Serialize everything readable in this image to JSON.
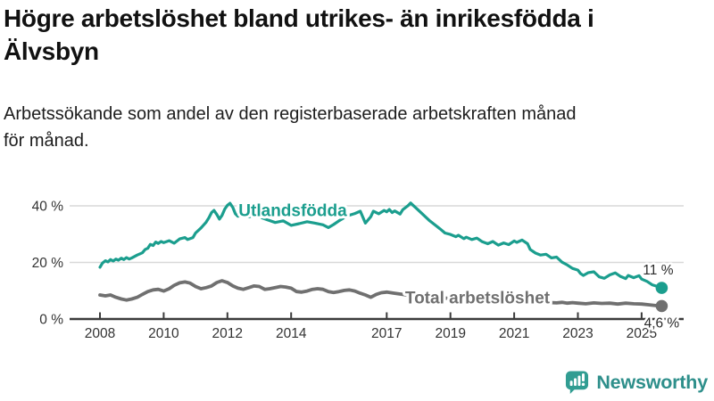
{
  "header": {
    "title_line1": "Högre arbetslöshet bland utrikes- än inrikesfödda i",
    "title_line2": "Älvsbyn",
    "subtitle_line1": "Arbetssökande som andel av den registerbaserade arbetskraften månad",
    "subtitle_line2": "för månad."
  },
  "chart_data": {
    "type": "line",
    "title": "Högre arbetslöshet bland utrikes- än inrikesfödda i Älvsbyn",
    "subtitle": "Arbetssökande som andel av den registerbaserade arbetskraften månad för månad.",
    "unit": "%",
    "x_axis": {
      "min": 2007.1,
      "max": 2026.3,
      "ticks": [
        2008,
        2010,
        2012,
        2014,
        2017,
        2019,
        2021,
        2023,
        2025
      ],
      "labels": [
        "2008",
        "2010",
        "2012",
        "2014",
        "2017",
        "2019",
        "2021",
        "2023",
        "2025"
      ]
    },
    "y_axis": {
      "min": 0,
      "max": 44,
      "grid": true,
      "ticks": [
        0,
        20,
        40
      ],
      "labels": [
        "0 %",
        "20 %",
        "40 %"
      ]
    },
    "series": [
      {
        "id": "utlandsfodda",
        "name": "Utlandsfödda",
        "color": "#1b9e8e",
        "line_width": 3.2,
        "end_label": "11 %",
        "end_value": 11,
        "label_anchor": [
          2014.05,
          38.2
        ],
        "end_label_offset": [
          -4,
          -15
        ],
        "points": [
          [
            2008.0,
            18.3
          ],
          [
            2008.08,
            19.8
          ],
          [
            2008.17,
            20.6
          ],
          [
            2008.25,
            20.2
          ],
          [
            2008.33,
            21.0
          ],
          [
            2008.42,
            20.5
          ],
          [
            2008.5,
            21.2
          ],
          [
            2008.58,
            20.8
          ],
          [
            2008.67,
            21.5
          ],
          [
            2008.75,
            21.0
          ],
          [
            2008.83,
            21.7
          ],
          [
            2008.92,
            21.2
          ],
          [
            2009.0,
            21.6
          ],
          [
            2009.17,
            22.6
          ],
          [
            2009.33,
            23.4
          ],
          [
            2009.42,
            24.6
          ],
          [
            2009.5,
            25.0
          ],
          [
            2009.58,
            26.4
          ],
          [
            2009.67,
            26.0
          ],
          [
            2009.75,
            27.2
          ],
          [
            2009.83,
            26.7
          ],
          [
            2009.92,
            27.4
          ],
          [
            2010.0,
            27.0
          ],
          [
            2010.17,
            27.7
          ],
          [
            2010.33,
            26.8
          ],
          [
            2010.42,
            27.6
          ],
          [
            2010.5,
            28.3
          ],
          [
            2010.67,
            28.8
          ],
          [
            2010.75,
            28.1
          ],
          [
            2010.92,
            28.8
          ],
          [
            2011.0,
            30.4
          ],
          [
            2011.17,
            32.2
          ],
          [
            2011.33,
            34.2
          ],
          [
            2011.42,
            35.8
          ],
          [
            2011.5,
            37.6
          ],
          [
            2011.58,
            38.4
          ],
          [
            2011.67,
            36.9
          ],
          [
            2011.75,
            35.3
          ],
          [
            2011.83,
            36.6
          ],
          [
            2011.92,
            38.9
          ],
          [
            2012.0,
            40.2
          ],
          [
            2012.08,
            40.9
          ],
          [
            2012.17,
            39.4
          ],
          [
            2012.25,
            37.2
          ],
          [
            2012.33,
            36.3
          ],
          [
            2012.5,
            36.8
          ],
          [
            2012.67,
            36.1
          ],
          [
            2012.83,
            36.6
          ],
          [
            2013.0,
            36.1
          ],
          [
            2013.25,
            35.1
          ],
          [
            2013.5,
            34.1
          ],
          [
            2013.75,
            34.7
          ],
          [
            2014.0,
            33.1
          ],
          [
            2014.25,
            33.7
          ],
          [
            2014.5,
            34.4
          ],
          [
            2014.75,
            33.9
          ],
          [
            2015.0,
            33.3
          ],
          [
            2015.17,
            32.3
          ],
          [
            2015.33,
            33.4
          ],
          [
            2015.5,
            34.7
          ],
          [
            2015.75,
            36.4
          ],
          [
            2016.0,
            37.3
          ],
          [
            2016.17,
            38.1
          ],
          [
            2016.33,
            33.9
          ],
          [
            2016.5,
            36.2
          ],
          [
            2016.58,
            38.1
          ],
          [
            2016.75,
            37.2
          ],
          [
            2016.92,
            38.4
          ],
          [
            2017.0,
            37.9
          ],
          [
            2017.08,
            38.7
          ],
          [
            2017.17,
            37.6
          ],
          [
            2017.25,
            38.2
          ],
          [
            2017.42,
            37.1
          ],
          [
            2017.5,
            38.6
          ],
          [
            2017.67,
            40.1
          ],
          [
            2017.75,
            41.0
          ],
          [
            2017.83,
            40.2
          ],
          [
            2018.0,
            38.4
          ],
          [
            2018.17,
            36.6
          ],
          [
            2018.33,
            34.9
          ],
          [
            2018.5,
            33.4
          ],
          [
            2018.67,
            31.9
          ],
          [
            2018.83,
            30.4
          ],
          [
            2019.0,
            29.9
          ],
          [
            2019.17,
            29.1
          ],
          [
            2019.25,
            29.6
          ],
          [
            2019.42,
            28.4
          ],
          [
            2019.5,
            28.9
          ],
          [
            2019.67,
            28.1
          ],
          [
            2019.83,
            28.6
          ],
          [
            2020.0,
            27.3
          ],
          [
            2020.17,
            26.6
          ],
          [
            2020.33,
            27.4
          ],
          [
            2020.5,
            26.1
          ],
          [
            2020.67,
            26.9
          ],
          [
            2020.83,
            26.3
          ],
          [
            2021.0,
            27.6
          ],
          [
            2021.08,
            27.1
          ],
          [
            2021.25,
            27.9
          ],
          [
            2021.42,
            26.6
          ],
          [
            2021.5,
            24.6
          ],
          [
            2021.67,
            23.3
          ],
          [
            2021.83,
            22.6
          ],
          [
            2022.0,
            22.9
          ],
          [
            2022.17,
            21.6
          ],
          [
            2022.33,
            21.9
          ],
          [
            2022.5,
            20.1
          ],
          [
            2022.67,
            19.1
          ],
          [
            2022.83,
            17.9
          ],
          [
            2023.0,
            17.3
          ],
          [
            2023.08,
            16.1
          ],
          [
            2023.17,
            15.4
          ],
          [
            2023.33,
            16.4
          ],
          [
            2023.5,
            16.7
          ],
          [
            2023.67,
            14.9
          ],
          [
            2023.83,
            14.4
          ],
          [
            2024.0,
            15.6
          ],
          [
            2024.17,
            16.3
          ],
          [
            2024.33,
            15.1
          ],
          [
            2024.5,
            14.3
          ],
          [
            2024.58,
            15.4
          ],
          [
            2024.75,
            14.6
          ],
          [
            2024.92,
            15.3
          ],
          [
            2025.0,
            14.1
          ],
          [
            2025.17,
            13.3
          ],
          [
            2025.33,
            12.1
          ],
          [
            2025.5,
            11.5
          ],
          [
            2025.63,
            11.0
          ]
        ]
      },
      {
        "id": "total",
        "name": "Total arbetslöshet",
        "color": "#707070",
        "line_width": 3.8,
        "end_label": "4,6 %",
        "end_value": 4.6,
        "label_anchor": [
          2019.85,
          7.4
        ],
        "end_label_offset": [
          0,
          24
        ],
        "points": [
          [
            2008.0,
            8.5
          ],
          [
            2008.17,
            8.2
          ],
          [
            2008.33,
            8.5
          ],
          [
            2008.5,
            7.7
          ],
          [
            2008.67,
            7.1
          ],
          [
            2008.83,
            6.7
          ],
          [
            2009.0,
            7.1
          ],
          [
            2009.17,
            7.7
          ],
          [
            2009.33,
            8.7
          ],
          [
            2009.5,
            9.7
          ],
          [
            2009.67,
            10.3
          ],
          [
            2009.83,
            10.5
          ],
          [
            2010.0,
            9.9
          ],
          [
            2010.17,
            10.7
          ],
          [
            2010.33,
            11.9
          ],
          [
            2010.5,
            12.8
          ],
          [
            2010.67,
            13.1
          ],
          [
            2010.83,
            12.7
          ],
          [
            2011.0,
            11.5
          ],
          [
            2011.17,
            10.7
          ],
          [
            2011.33,
            11.1
          ],
          [
            2011.5,
            11.7
          ],
          [
            2011.67,
            12.9
          ],
          [
            2011.83,
            13.5
          ],
          [
            2012.0,
            12.9
          ],
          [
            2012.17,
            11.7
          ],
          [
            2012.33,
            10.9
          ],
          [
            2012.5,
            10.5
          ],
          [
            2012.67,
            11.1
          ],
          [
            2012.83,
            11.7
          ],
          [
            2013.0,
            11.5
          ],
          [
            2013.17,
            10.5
          ],
          [
            2013.33,
            10.7
          ],
          [
            2013.5,
            11.1
          ],
          [
            2013.67,
            11.5
          ],
          [
            2013.83,
            11.3
          ],
          [
            2014.0,
            10.9
          ],
          [
            2014.17,
            9.7
          ],
          [
            2014.33,
            9.5
          ],
          [
            2014.5,
            9.9
          ],
          [
            2014.67,
            10.5
          ],
          [
            2014.83,
            10.7
          ],
          [
            2015.0,
            10.5
          ],
          [
            2015.17,
            9.7
          ],
          [
            2015.33,
            9.4
          ],
          [
            2015.5,
            9.7
          ],
          [
            2015.67,
            10.1
          ],
          [
            2015.83,
            10.3
          ],
          [
            2016.0,
            9.9
          ],
          [
            2016.17,
            9.1
          ],
          [
            2016.33,
            8.5
          ],
          [
            2016.5,
            7.7
          ],
          [
            2016.67,
            8.7
          ],
          [
            2016.83,
            9.3
          ],
          [
            2017.0,
            9.5
          ],
          [
            2017.25,
            9.1
          ],
          [
            2017.5,
            8.7
          ],
          [
            2017.75,
            8.3
          ],
          [
            2018.0,
            8.1
          ],
          [
            2018.5,
            7.5
          ],
          [
            2019.0,
            7.3
          ],
          [
            2019.5,
            6.9
          ],
          [
            2020.0,
            7.1
          ],
          [
            2020.5,
            6.7
          ],
          [
            2021.0,
            6.9
          ],
          [
            2021.5,
            6.3
          ],
          [
            2022.0,
            5.9
          ],
          [
            2022.33,
            5.7
          ],
          [
            2022.5,
            5.9
          ],
          [
            2022.67,
            5.6
          ],
          [
            2022.83,
            5.8
          ],
          [
            2023.0,
            5.6
          ],
          [
            2023.25,
            5.4
          ],
          [
            2023.5,
            5.7
          ],
          [
            2023.75,
            5.5
          ],
          [
            2024.0,
            5.6
          ],
          [
            2024.25,
            5.3
          ],
          [
            2024.5,
            5.6
          ],
          [
            2024.75,
            5.4
          ],
          [
            2025.0,
            5.3
          ],
          [
            2025.25,
            5.0
          ],
          [
            2025.5,
            4.7
          ],
          [
            2025.63,
            4.6
          ]
        ]
      }
    ]
  },
  "branding": {
    "name": "Newsworthy",
    "icon": "newsworthy-speech-bubble-chart-icon",
    "icon_color": "#319d92",
    "text_color": "#2e8f8b"
  }
}
